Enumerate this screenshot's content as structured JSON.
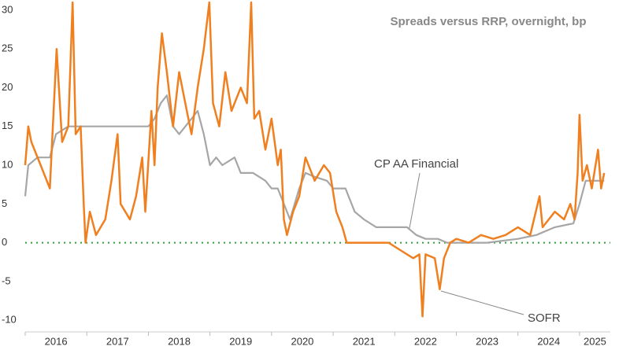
{
  "chart_data": {
    "type": "line",
    "title": "Spreads versus RRP, overnight, bp",
    "xlim": [
      2016.0,
      2025.5
    ],
    "xticks": [
      {
        "value": 2016.5,
        "label": "2016"
      },
      {
        "value": 2017.5,
        "label": "2017"
      },
      {
        "value": 2018.5,
        "label": "2018"
      },
      {
        "value": 2019.5,
        "label": "2019"
      },
      {
        "value": 2020.5,
        "label": "2020"
      },
      {
        "value": 2021.5,
        "label": "2021"
      },
      {
        "value": 2022.5,
        "label": "2022"
      },
      {
        "value": 2023.5,
        "label": "2023"
      },
      {
        "value": 2024.5,
        "label": "2024"
      },
      {
        "value": 2025.25,
        "label": "2025"
      }
    ],
    "ylim": [
      -11.5,
      31
    ],
    "yticks": [
      -10,
      -5,
      0,
      5,
      10,
      15,
      20,
      25,
      30
    ],
    "zero_line_color": "#2e9e3e",
    "series": [
      {
        "name": "CP AA Financial",
        "color": "#a6a6a6",
        "x": [
          2016.0,
          2016.05,
          2016.2,
          2016.4,
          2016.5,
          2016.7,
          2016.9,
          2017.0,
          2017.5,
          2018.0,
          2018.1,
          2018.2,
          2018.3,
          2018.4,
          2018.5,
          2018.7,
          2018.8,
          2018.9,
          2019.0,
          2019.1,
          2019.2,
          2019.4,
          2019.5,
          2019.7,
          2019.9,
          2020.0,
          2020.1,
          2020.2,
          2020.3,
          2020.45,
          2020.55,
          2020.7,
          2020.9,
          2021.0,
          2021.2,
          2021.35,
          2021.5,
          2021.7,
          2022.0,
          2022.2,
          2022.35,
          2022.5,
          2022.7,
          2022.85,
          2023.0,
          2023.5,
          2024.0,
          2024.3,
          2024.6,
          2024.9,
          2025.0,
          2025.1,
          2025.4
        ],
        "values": [
          6,
          10,
          11,
          11,
          14,
          15,
          15,
          15,
          15,
          15,
          16,
          18,
          19,
          15,
          14,
          16,
          17,
          14,
          10,
          11,
          10,
          11,
          9,
          9,
          8,
          7,
          7,
          5,
          3,
          7,
          9,
          8.5,
          8,
          7,
          7,
          4,
          3,
          2,
          2,
          2,
          1,
          0.5,
          0.5,
          0,
          0,
          0,
          0.5,
          1,
          2,
          2.5,
          5,
          8,
          8
        ]
      },
      {
        "name": "SOFR",
        "color": "#f07f1f",
        "x": [
          2016.0,
          2016.05,
          2016.1,
          2016.25,
          2016.4,
          2016.51,
          2016.6,
          2016.7,
          2016.77,
          2016.82,
          2016.9,
          2016.95,
          2016.98,
          2017.05,
          2017.15,
          2017.3,
          2017.4,
          2017.5,
          2017.55,
          2017.7,
          2017.8,
          2017.9,
          2017.95,
          2018.05,
          2018.1,
          2018.15,
          2018.22,
          2018.3,
          2018.4,
          2018.5,
          2018.6,
          2018.7,
          2018.8,
          2018.9,
          2018.99,
          2019.05,
          2019.15,
          2019.25,
          2019.35,
          2019.5,
          2019.6,
          2019.67,
          2019.72,
          2019.8,
          2019.9,
          2020.0,
          2020.1,
          2020.15,
          2020.2,
          2020.25,
          2020.35,
          2020.45,
          2020.55,
          2020.7,
          2020.85,
          2020.95,
          2021.05,
          2021.15,
          2021.22,
          2021.5,
          2021.9,
          2022.1,
          2022.3,
          2022.4,
          2022.45,
          2022.5,
          2022.65,
          2022.73,
          2022.8,
          2022.9,
          2023.0,
          2023.2,
          2023.4,
          2023.6,
          2023.8,
          2024.0,
          2024.2,
          2024.35,
          2024.4,
          2024.6,
          2024.75,
          2024.85,
          2024.92,
          2024.97,
          2025.0,
          2025.05,
          2025.12,
          2025.2,
          2025.3,
          2025.35,
          2025.4
        ],
        "values": [
          10,
          15,
          13,
          10,
          7,
          25,
          13,
          15,
          31,
          14,
          15,
          5,
          0,
          4,
          1,
          3,
          8,
          14,
          5,
          3,
          6,
          11,
          4,
          17,
          10,
          20,
          27,
          22,
          15,
          22,
          18,
          14,
          20,
          25,
          31,
          18,
          15,
          22,
          17,
          20,
          18,
          31,
          16,
          17,
          12,
          16,
          10,
          12,
          3,
          1,
          4,
          6,
          11,
          8,
          10,
          9,
          4,
          2,
          0,
          0,
          0,
          -1,
          -2,
          -1.5,
          -9.5,
          -1.5,
          -2,
          -6,
          -2,
          0,
          0.5,
          0,
          1,
          0.5,
          1,
          2,
          1,
          6,
          2,
          4,
          3,
          5,
          3,
          9,
          16.5,
          8,
          10,
          7,
          12,
          7,
          9
        ]
      }
    ]
  }
}
